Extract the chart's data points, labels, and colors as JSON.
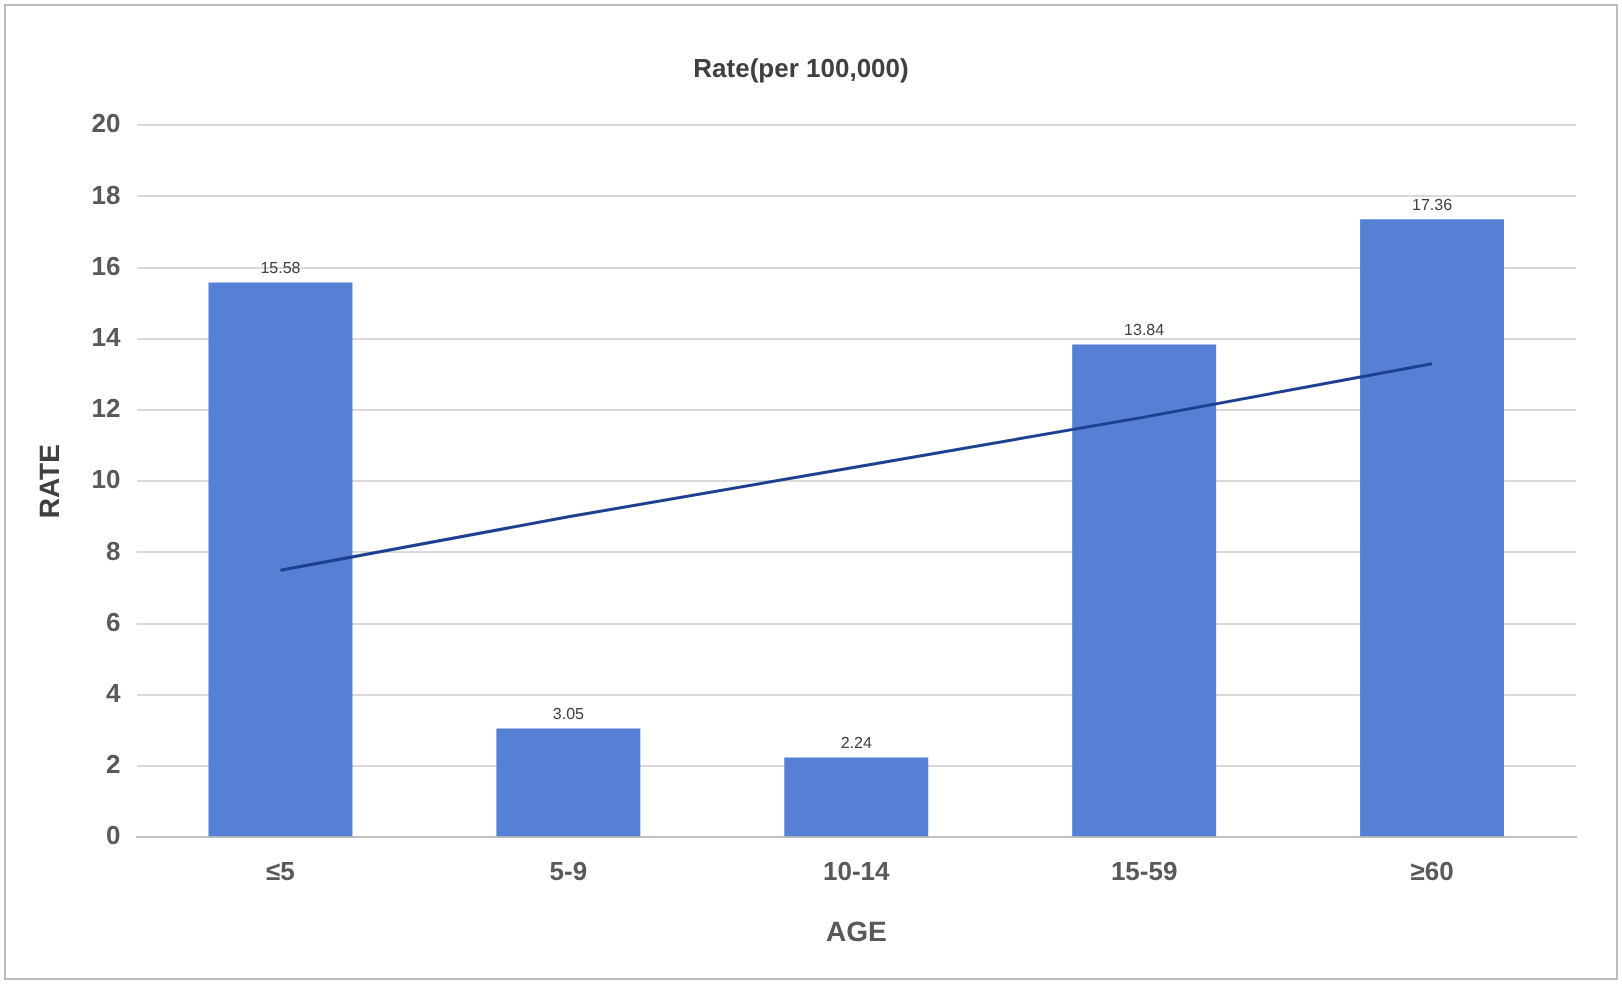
{
  "chart_data": {
    "type": "bar",
    "title": "Rate(per 100,000)",
    "xlabel": "AGE",
    "ylabel": "RATE",
    "categories": [
      "≤5",
      "5-9",
      "10-14",
      "15-59",
      "≥60"
    ],
    "series": [
      {
        "color": "#5580d4",
        "values": [
          15.58,
          3.05,
          2.24,
          13.84,
          17.36
        ],
        "value_labels": [
          "15.58",
          "3.05",
          "2.24",
          "13.84",
          "17.36"
        ]
      },
      {
        "type": "line",
        "color": "#1c3f8f",
        "values": [
          7.5,
          9.0,
          10.4,
          11.8,
          13.3
        ],
        "marker": "none"
      }
    ],
    "ylim": [
      0,
      20
    ],
    "yticks": [
      0,
      2,
      4,
      6,
      8,
      10,
      12,
      14,
      16,
      18,
      20
    ],
    "grid": "y",
    "legend": false
  }
}
